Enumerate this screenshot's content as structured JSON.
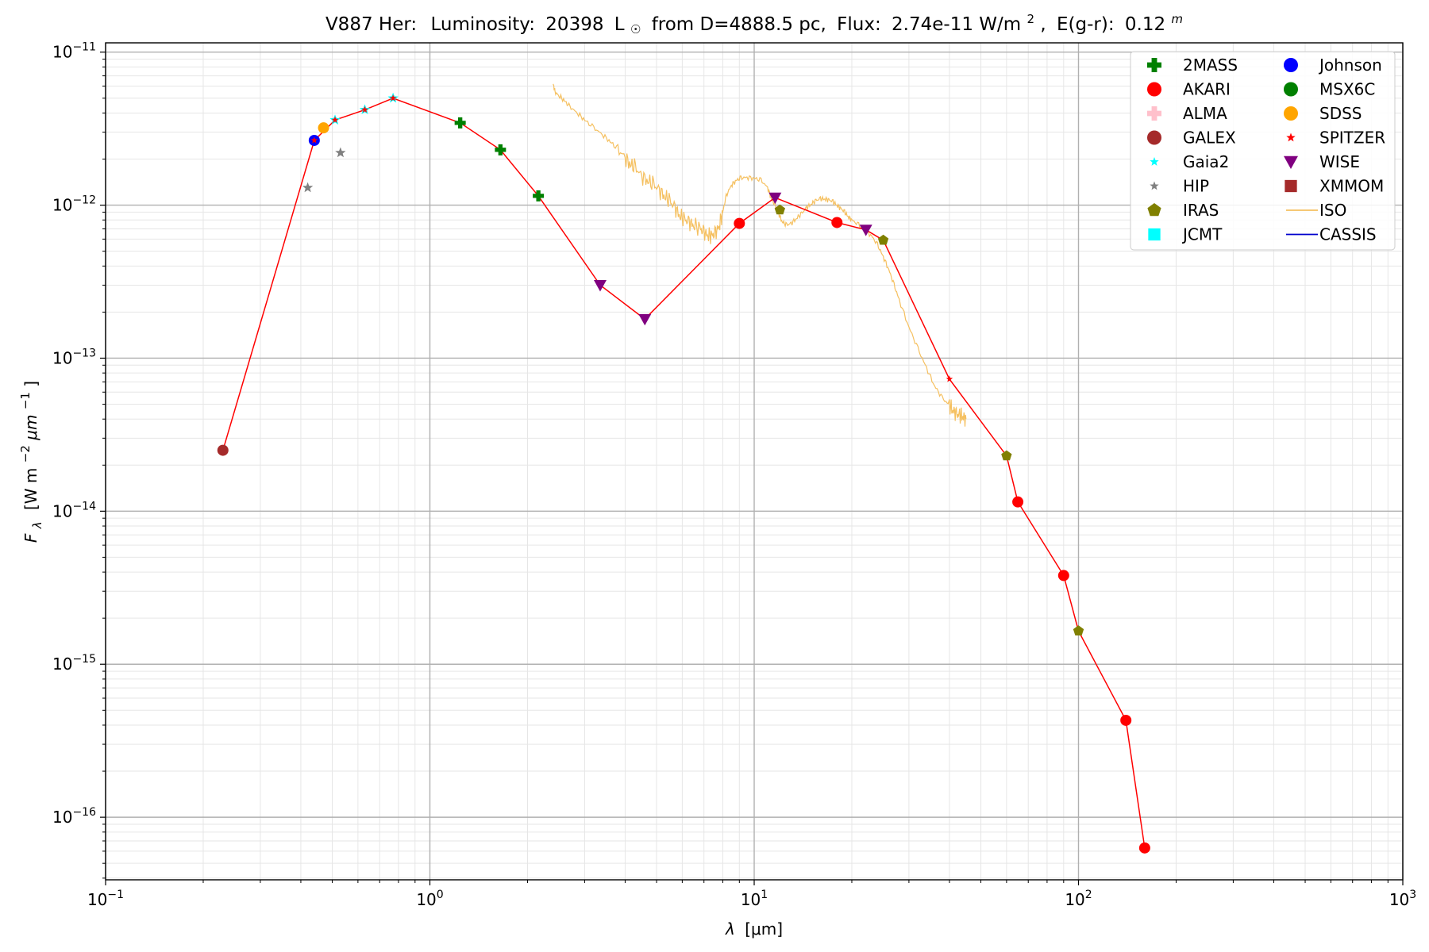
{
  "chart_data": {
    "type": "scatter",
    "title": {
      "star": "V887 Her:",
      "lum_label": "Luminosity:",
      "lum_value": "20398",
      "lum_unit": "L",
      "distance": "from D=4888.5 pc,",
      "flux_label": "Flux:",
      "flux_value": "2.74e-11 W/m",
      "flux_power": "2",
      "ext_label": "E(g-r):",
      "ext_value": "0.12",
      "ext_power": "m"
    },
    "xlabel": {
      "symbol": "λ",
      "unit": "[μm]"
    },
    "ylabel": {
      "symbol": "F",
      "sub": "λ",
      "unit_a": "[W m",
      "unit_b": "μm",
      "exp_a": "−2",
      "exp_b": "−1"
    },
    "x_scale": "log",
    "y_scale": "log",
    "xlim": [
      0.1,
      1000
    ],
    "ylim": [
      3.9e-17,
      1.15e-11
    ],
    "grid": true,
    "legend_position": "top-right",
    "x_ticks": [
      {
        "value": 0.1,
        "base": "10",
        "exp": "−1"
      },
      {
        "value": 1,
        "base": "10",
        "exp": "0"
      },
      {
        "value": 10,
        "base": "10",
        "exp": "1"
      },
      {
        "value": 100,
        "base": "10",
        "exp": "2"
      },
      {
        "value": 1000,
        "base": "10",
        "exp": "3"
      }
    ],
    "y_ticks": [
      {
        "value": 1e-16,
        "base": "10",
        "exp": "−16"
      },
      {
        "value": 1e-15,
        "base": "10",
        "exp": "−15"
      },
      {
        "value": 1e-14,
        "base": "10",
        "exp": "−14"
      },
      {
        "value": 1e-13,
        "base": "10",
        "exp": "−13"
      },
      {
        "value": 1e-12,
        "base": "10",
        "exp": "−12"
      },
      {
        "value": 1e-11,
        "base": "10",
        "exp": "−11"
      }
    ],
    "sed_line": {
      "color": "#ff0000",
      "x": [
        0.23,
        0.44,
        0.51,
        0.63,
        0.77,
        1.24,
        1.65,
        2.16,
        3.35,
        4.6,
        9.0,
        11.6,
        18.0,
        22.1,
        25.0,
        40.0,
        60.0,
        65.0,
        90.0,
        100.0,
        140.0,
        160.0
      ],
      "y": [
        2.5e-14,
        2.65e-12,
        3.6e-12,
        4.2e-12,
        5e-12,
        3.45e-12,
        2.3e-12,
        1.15e-12,
        3e-13,
        1.8e-13,
        7.6e-13,
        1.12e-12,
        7.7e-13,
        6.9e-13,
        5.9e-13,
        7.3e-14,
        2.3e-14,
        1.15e-14,
        3.8e-15,
        1.65e-15,
        4.3e-16,
        6.3e-17
      ]
    },
    "iso_spectrum": {
      "color": "#f5c060",
      "x": [
        2.4,
        2.43,
        2.5,
        2.6,
        2.7,
        2.85,
        3.0,
        3.2,
        3.4,
        3.6,
        3.8,
        4.0,
        4.15,
        4.3,
        4.5,
        4.7,
        4.9,
        5.1,
        5.3,
        5.5,
        5.7,
        5.9,
        6.1,
        6.3,
        6.5,
        6.8,
        7.0,
        7.2,
        7.4,
        7.6,
        7.8,
        8.0,
        8.2,
        8.5,
        8.8,
        9.1,
        9.5,
        10.0,
        10.5,
        11.0,
        11.3,
        11.6,
        11.9,
        12.2,
        12.6,
        13.0,
        13.5,
        14.0,
        14.5,
        15.0,
        15.5,
        16.0,
        16.5,
        17.0,
        17.5,
        18.0,
        18.5,
        19.0,
        19.5,
        20.0,
        21.0,
        22.0,
        23.0,
        24.0,
        25.0,
        26.0,
        27.0,
        28.0,
        30.0,
        32.0,
        34.0,
        36.0,
        38.0,
        40.0,
        41.0,
        42.0,
        43.0,
        44.0,
        45.0
      ],
      "y": [
        6.2e-12,
        5.5e-12,
        5.2e-12,
        4.8e-12,
        4.4e-12,
        4e-12,
        3.6e-12,
        3.2e-12,
        2.9e-12,
        2.6e-12,
        2.3e-12,
        2.05e-12,
        1.85e-12,
        1.75e-12,
        1.55e-12,
        1.45e-12,
        1.35e-12,
        1.25e-12,
        1.15e-12,
        1.05e-12,
        9.6e-13,
        8.6e-13,
        8e-13,
        7.7e-13,
        7.5e-13,
        7e-13,
        6.6e-13,
        6.4e-13,
        6.3e-13,
        6.5e-13,
        7.4e-13,
        9e-13,
        1.15e-12,
        1.35e-12,
        1.45e-12,
        1.5e-12,
        1.52e-12,
        1.5e-12,
        1.45e-12,
        1.3e-12,
        1.1e-12,
        1e-12,
        8.8e-13,
        7.8e-13,
        7.4e-13,
        7.6e-13,
        8.2e-13,
        8.8e-13,
        9.6e-13,
        1.02e-12,
        1.07e-12,
        1.1e-12,
        1.1e-12,
        1.08e-12,
        1.05e-12,
        1e-12,
        9.5e-13,
        9e-13,
        8.4e-13,
        8e-13,
        7.4e-13,
        6.9e-13,
        6.3e-13,
        5.5e-13,
        4.6e-13,
        3.8e-13,
        3e-13,
        2.4e-13,
        1.6e-13,
        1.15e-13,
        8.6e-14,
        6.6e-14,
        5.5e-14,
        4.9e-14,
        4.6e-14,
        4.3e-14,
        4.2e-14,
        4.2e-14,
        4e-14
      ]
    },
    "series": [
      {
        "name": "2MASS",
        "marker": "plus",
        "color": "#008000",
        "x": [
          1.24,
          1.65,
          2.16
        ],
        "y": [
          3.45e-12,
          2.3e-12,
          1.15e-12
        ]
      },
      {
        "name": "AKARI",
        "marker": "circle",
        "color": "#ff0000",
        "x": [
          9.0,
          18.0,
          65.0,
          90.0,
          140.0,
          160.0
        ],
        "y": [
          7.6e-13,
          7.7e-13,
          1.15e-14,
          3.8e-15,
          4.3e-16,
          6.3e-17
        ]
      },
      {
        "name": "ALMA",
        "marker": "plus",
        "color": "#ffc0cb",
        "x": [],
        "y": []
      },
      {
        "name": "GALEX",
        "marker": "circle",
        "color": "#a52a2a",
        "x": [
          0.23
        ],
        "y": [
          2.5e-14
        ]
      },
      {
        "name": "Gaia2",
        "marker": "star",
        "color": "#00ffff",
        "x": [
          0.51,
          0.63,
          0.77
        ],
        "y": [
          3.6e-12,
          4.2e-12,
          5e-12
        ]
      },
      {
        "name": "HIP",
        "marker": "star",
        "color": "#808080",
        "x": [
          0.42,
          0.53
        ],
        "y": [
          1.3e-12,
          2.2e-12
        ]
      },
      {
        "name": "IRAS",
        "marker": "pentagon",
        "color": "#808000",
        "x": [
          12.0,
          25.0,
          60.0,
          100.0
        ],
        "y": [
          9.3e-13,
          5.9e-13,
          2.3e-14,
          1.65e-15
        ]
      },
      {
        "name": "JCMT",
        "marker": "square",
        "color": "#00ffff",
        "x": [],
        "y": []
      },
      {
        "name": "Johnson",
        "marker": "circle",
        "color": "#0000ff",
        "x": [
          0.44
        ],
        "y": [
          2.65e-12
        ]
      },
      {
        "name": "MSX6C",
        "marker": "circle",
        "color": "#008000",
        "x": [],
        "y": []
      },
      {
        "name": "SDSS",
        "marker": "circle",
        "color": "#ffa500",
        "x": [
          0.47
        ],
        "y": [
          3.2e-12
        ]
      },
      {
        "name": "SPITZER",
        "marker": "star",
        "color": "#ff0000",
        "x": [
          0.44,
          0.51,
          0.63,
          0.77,
          40.0
        ],
        "y": [
          2.65e-12,
          3.6e-12,
          4.2e-12,
          5e-12,
          7.3e-14
        ]
      },
      {
        "name": "WISE",
        "marker": "triangle-down",
        "color": "#800080",
        "x": [
          3.35,
          4.6,
          11.6,
          22.1
        ],
        "y": [
          3e-13,
          1.8e-13,
          1.12e-12,
          6.9e-13
        ]
      },
      {
        "name": "XMMOM",
        "marker": "square",
        "color": "#a52a2a",
        "x": [],
        "y": []
      },
      {
        "name": "ISO",
        "marker": "line",
        "color": "#f5c060",
        "x": [],
        "y": []
      },
      {
        "name": "CASSIS",
        "marker": "line",
        "color": "#0000cd",
        "x": [],
        "y": []
      }
    ]
  }
}
